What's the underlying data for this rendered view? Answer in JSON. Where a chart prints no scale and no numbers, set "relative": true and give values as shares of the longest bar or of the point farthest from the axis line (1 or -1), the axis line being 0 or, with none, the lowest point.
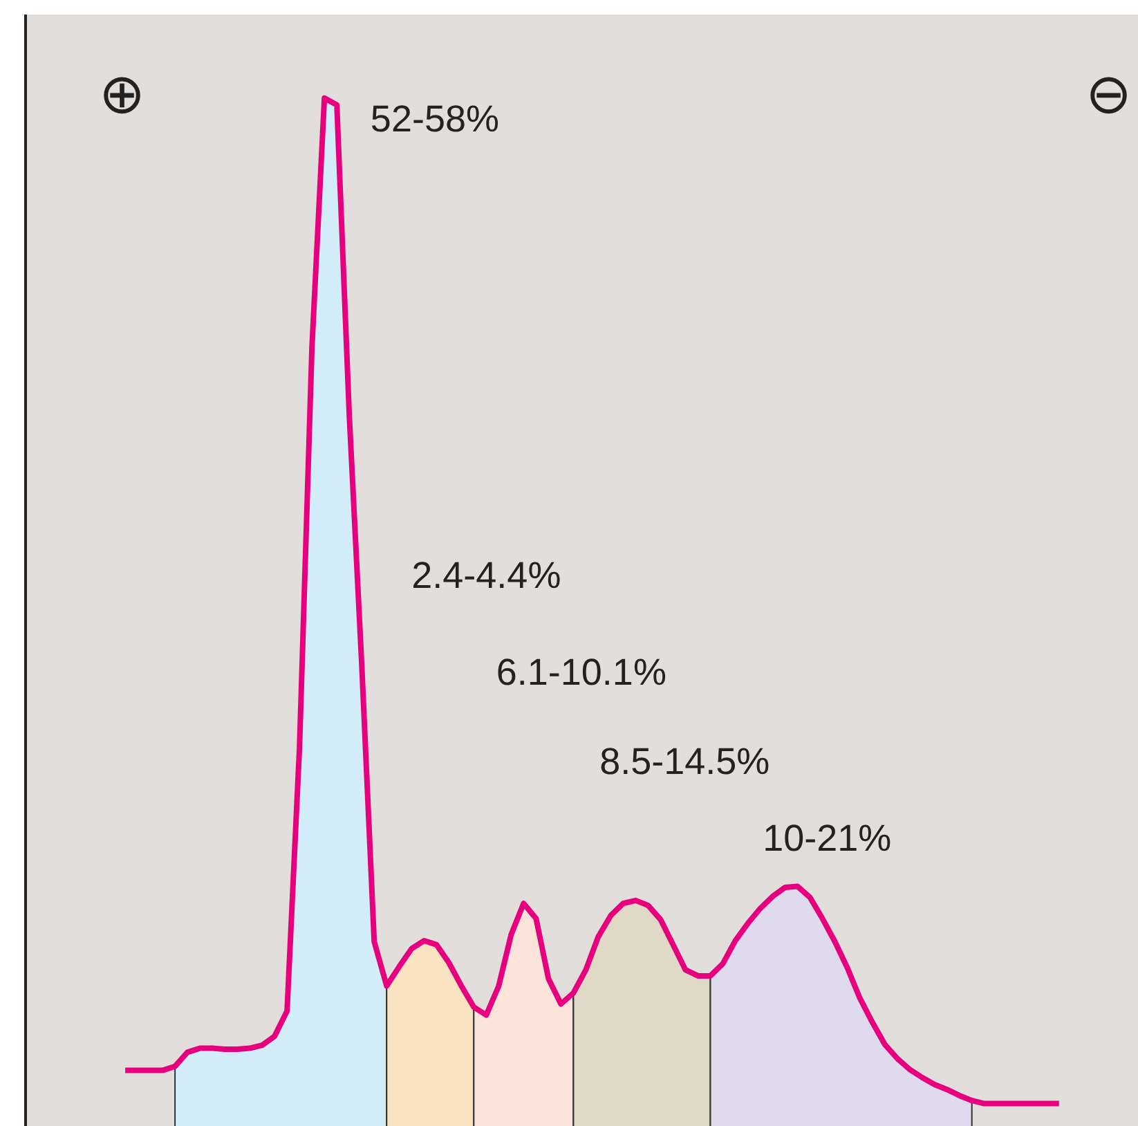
{
  "chart_data": {
    "type": "line",
    "relative": true,
    "categories": [
      null,
      null,
      null,
      null,
      null,
      null,
      null,
      null,
      null,
      null,
      null,
      null,
      null,
      null,
      null,
      null,
      null,
      null,
      null,
      null,
      null,
      null,
      null,
      null,
      null,
      null,
      null,
      null,
      null,
      null,
      null,
      null,
      null,
      null,
      null,
      null,
      null,
      null,
      null,
      null,
      null,
      null,
      null,
      null,
      null,
      null,
      null,
      null,
      null,
      null,
      null,
      null,
      null,
      null,
      null,
      null,
      null,
      null,
      null,
      null,
      null,
      null,
      null,
      null,
      null,
      null,
      null,
      null,
      null,
      null,
      null,
      null,
      null,
      null,
      null,
      null
    ],
    "series": [
      {
        "type": "area",
        "color": "#d2ecf8",
        "values": [
          null,
          null,
          null,
          null,
          0.037,
          0.051,
          0.055,
          0.055,
          0.054,
          0.054,
          0.055,
          0.058,
          0.067,
          0.092,
          0.354,
          0.752,
          1.0,
          0.993,
          0.684,
          0.436,
          0.161,
          0.117,
          null,
          null,
          null,
          null,
          null,
          null,
          null,
          null,
          null,
          null,
          null,
          null,
          null,
          null,
          null,
          null,
          null,
          null,
          null,
          null,
          null,
          null,
          null,
          null,
          null,
          null,
          null,
          null,
          null,
          null,
          null,
          null,
          null,
          null,
          null,
          null,
          null,
          null,
          null,
          null,
          null,
          null,
          null,
          null,
          null,
          null,
          null,
          null,
          null,
          null,
          null,
          null,
          null,
          null
        ]
      },
      {
        "type": "area",
        "color": "#fae3c0",
        "values": [
          null,
          null,
          null,
          null,
          null,
          null,
          null,
          null,
          null,
          null,
          null,
          null,
          null,
          null,
          null,
          null,
          null,
          null,
          null,
          null,
          null,
          0.117,
          0.136,
          0.154,
          0.162,
          0.158,
          0.14,
          0.117,
          0.096,
          null,
          null,
          null,
          null,
          null,
          null,
          null,
          null,
          null,
          null,
          null,
          null,
          null,
          null,
          null,
          null,
          null,
          null,
          null,
          null,
          null,
          null,
          null,
          null,
          null,
          null,
          null,
          null,
          null,
          null,
          null,
          null,
          null,
          null,
          null,
          null,
          null,
          null,
          null,
          null,
          null,
          null,
          null,
          null,
          null,
          null,
          null
        ]
      },
      {
        "type": "area",
        "color": "#fbe3da",
        "values": [
          null,
          null,
          null,
          null,
          null,
          null,
          null,
          null,
          null,
          null,
          null,
          null,
          null,
          null,
          null,
          null,
          null,
          null,
          null,
          null,
          null,
          null,
          null,
          null,
          null,
          null,
          null,
          null,
          0.096,
          0.088,
          0.117,
          0.168,
          0.199,
          0.184,
          0.124,
          0.099,
          0.11,
          null,
          null,
          null,
          null,
          null,
          null,
          null,
          null,
          null,
          null,
          null,
          null,
          null,
          null,
          null,
          null,
          null,
          null,
          null,
          null,
          null,
          null,
          null,
          null,
          null,
          null,
          null,
          null,
          null,
          null,
          null,
          null,
          null,
          null,
          null,
          null,
          null,
          null,
          null
        ]
      },
      {
        "type": "area",
        "color": "#e0d9c6",
        "values": [
          null,
          null,
          null,
          null,
          null,
          null,
          null,
          null,
          null,
          null,
          null,
          null,
          null,
          null,
          null,
          null,
          null,
          null,
          null,
          null,
          null,
          null,
          null,
          null,
          null,
          null,
          null,
          null,
          null,
          null,
          null,
          null,
          null,
          null,
          null,
          null,
          0.11,
          0.133,
          0.166,
          0.187,
          0.199,
          0.202,
          0.197,
          0.183,
          0.158,
          0.133,
          0.127,
          0.127,
          null,
          null,
          null,
          null,
          null,
          null,
          null,
          null,
          null,
          null,
          null,
          null,
          null,
          null,
          null,
          null,
          null,
          null,
          null,
          null,
          null,
          null,
          null,
          null,
          null,
          null,
          null,
          null
        ]
      },
      {
        "type": "area",
        "color": "#dfdbec",
        "values": [
          null,
          null,
          null,
          null,
          null,
          null,
          null,
          null,
          null,
          null,
          null,
          null,
          null,
          null,
          null,
          null,
          null,
          null,
          null,
          null,
          null,
          null,
          null,
          null,
          null,
          null,
          null,
          null,
          null,
          null,
          null,
          null,
          null,
          null,
          null,
          null,
          null,
          null,
          null,
          null,
          null,
          null,
          null,
          null,
          null,
          null,
          null,
          0.127,
          0.139,
          0.162,
          0.179,
          0.194,
          0.206,
          0.215,
          0.216,
          0.205,
          0.184,
          0.161,
          0.135,
          0.105,
          0.081,
          0.059,
          0.045,
          0.034,
          0.026,
          0.019,
          0.014,
          0.008,
          0.003,
          null,
          null,
          null,
          null,
          null,
          null,
          null
        ]
      },
      {
        "color": "#e6007e",
        "values": [
          0.033,
          0.033,
          0.033,
          0.033,
          0.037,
          0.051,
          0.055,
          0.055,
          0.054,
          0.054,
          0.055,
          0.058,
          0.067,
          0.092,
          0.354,
          0.752,
          1.0,
          0.993,
          0.684,
          0.436,
          0.161,
          0.117,
          0.136,
          0.154,
          0.162,
          0.158,
          0.14,
          0.117,
          0.096,
          0.088,
          0.117,
          0.168,
          0.199,
          0.184,
          0.124,
          0.099,
          0.11,
          0.133,
          0.166,
          0.187,
          0.199,
          0.202,
          0.197,
          0.183,
          0.158,
          0.133,
          0.127,
          0.127,
          0.139,
          0.162,
          0.179,
          0.194,
          0.206,
          0.215,
          0.216,
          0.205,
          0.184,
          0.161,
          0.135,
          0.105,
          0.081,
          0.059,
          0.045,
          0.034,
          0.026,
          0.019,
          0.014,
          0.008,
          0.003,
          0,
          0,
          0,
          0,
          0,
          0,
          0
        ]
      }
    ],
    "annotations": [
      "⊕",
      "⊖",
      "52-58%",
      "2.4-4.4%",
      "6.1-10.1%",
      "8.5-14.5%",
      "10-21%"
    ],
    "grid": false,
    "marker": "none",
    "line_style": "solid"
  }
}
